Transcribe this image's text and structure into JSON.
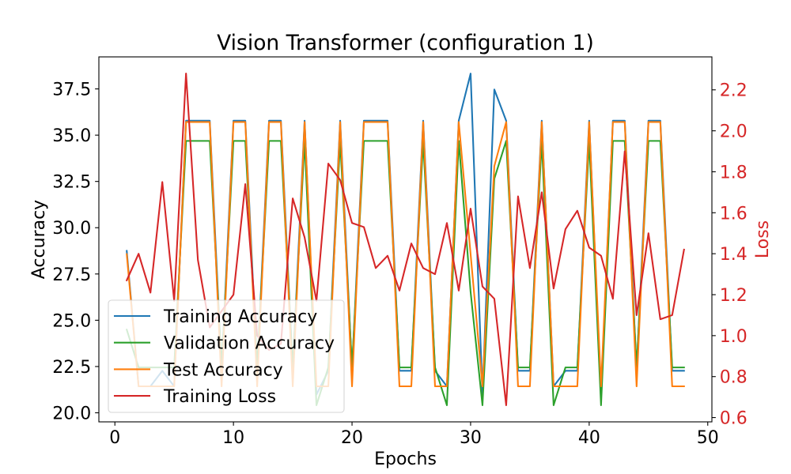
{
  "chart_data": {
    "type": "line",
    "title": "Vision Transformer (configuration 1)",
    "xlabel": "Epochs",
    "ylabel": "Accuracy",
    "y2label": "Loss",
    "y2_color": "#d62728",
    "grid": false,
    "legend_position": "lower-left",
    "xlim": [
      -1.35,
      50.35
    ],
    "ylim": [
      19.51,
      39.23
    ],
    "y2lim": [
      0.579,
      2.361
    ],
    "xticks": [
      0,
      10,
      20,
      30,
      40,
      50
    ],
    "xtick_labels": [
      "0",
      "10",
      "20",
      "30",
      "40",
      "50"
    ],
    "yticks": [
      20.0,
      22.5,
      25.0,
      27.5,
      30.0,
      32.5,
      35.0,
      37.5
    ],
    "ytick_labels": [
      "20.0",
      "22.5",
      "25.0",
      "27.5",
      "30.0",
      "32.5",
      "35.0",
      "37.5"
    ],
    "y2ticks": [
      0.6,
      0.8,
      1.0,
      1.2,
      1.4,
      1.6,
      1.8,
      2.0,
      2.2
    ],
    "y2tick_labels": [
      "0.6",
      "0.8",
      "1.0",
      "1.2",
      "1.4",
      "1.6",
      "1.8",
      "2.0",
      "2.2"
    ],
    "x": [
      1,
      2,
      3,
      4,
      5,
      6,
      7,
      8,
      9,
      10,
      11,
      12,
      13,
      14,
      15,
      16,
      17,
      18,
      19,
      20,
      21,
      22,
      23,
      24,
      25,
      26,
      27,
      28,
      29,
      30,
      31,
      32,
      33,
      34,
      35,
      36,
      37,
      38,
      39,
      40,
      41,
      42,
      43,
      44,
      45,
      46,
      47,
      48
    ],
    "series": [
      {
        "name": "Training Accuracy",
        "axis": "left",
        "color": "#1f77b4",
        "values": [
          28.75,
          21.43,
          21.43,
          22.27,
          21.43,
          35.78,
          35.78,
          35.78,
          22.27,
          35.78,
          35.78,
          22.27,
          35.78,
          35.78,
          22.27,
          35.78,
          20.98,
          22.27,
          35.78,
          22.27,
          35.78,
          35.78,
          35.78,
          22.27,
          22.27,
          35.78,
          22.27,
          21.43,
          35.78,
          38.33,
          20.98,
          37.47,
          35.78,
          22.27,
          22.27,
          35.78,
          21.43,
          22.27,
          22.27,
          35.78,
          20.98,
          35.78,
          35.78,
          22.27,
          35.78,
          35.78,
          22.27,
          22.27
        ]
      },
      {
        "name": "Validation Accuracy",
        "axis": "left",
        "color": "#2ca02c",
        "values": [
          24.49,
          22.45,
          22.45,
          22.45,
          22.45,
          34.69,
          34.69,
          34.69,
          22.45,
          34.69,
          34.69,
          22.45,
          34.69,
          34.69,
          22.45,
          34.69,
          20.41,
          22.45,
          34.69,
          22.45,
          34.69,
          34.69,
          34.69,
          22.45,
          22.45,
          34.69,
          22.45,
          20.41,
          34.69,
          26.53,
          20.41,
          32.65,
          34.69,
          22.45,
          22.45,
          34.69,
          20.41,
          22.45,
          22.45,
          34.69,
          20.41,
          34.69,
          34.69,
          22.45,
          34.69,
          34.69,
          22.45,
          22.45
        ]
      },
      {
        "name": "Test Accuracy",
        "axis": "left",
        "color": "#ff7f0e",
        "values": [
          28.57,
          21.43,
          21.43,
          21.43,
          21.43,
          35.71,
          35.71,
          35.71,
          21.43,
          35.71,
          35.71,
          21.43,
          35.71,
          35.71,
          21.43,
          35.71,
          21.43,
          21.43,
          35.71,
          21.43,
          35.71,
          35.71,
          35.71,
          21.43,
          21.43,
          35.71,
          21.43,
          21.43,
          35.71,
          28.57,
          21.43,
          33.33,
          35.71,
          21.43,
          21.43,
          35.71,
          21.43,
          21.43,
          21.43,
          35.71,
          21.43,
          35.71,
          35.71,
          21.43,
          35.71,
          35.71,
          21.43,
          21.43
        ]
      },
      {
        "name": "Training Loss",
        "axis": "right",
        "color": "#d62728",
        "values": [
          1.27,
          1.4,
          1.21,
          1.75,
          1.17,
          2.28,
          1.37,
          1.04,
          1.12,
          1.2,
          1.74,
          1.0,
          0.93,
          0.96,
          1.67,
          1.48,
          1.17,
          1.84,
          1.76,
          1.55,
          1.53,
          1.33,
          1.39,
          1.22,
          1.45,
          1.33,
          1.3,
          1.55,
          1.22,
          1.62,
          1.24,
          1.18,
          0.66,
          1.68,
          1.33,
          1.7,
          1.23,
          1.52,
          1.61,
          1.43,
          1.39,
          1.18,
          1.9,
          1.1,
          1.5,
          1.08,
          1.1,
          1.42
        ]
      }
    ]
  }
}
